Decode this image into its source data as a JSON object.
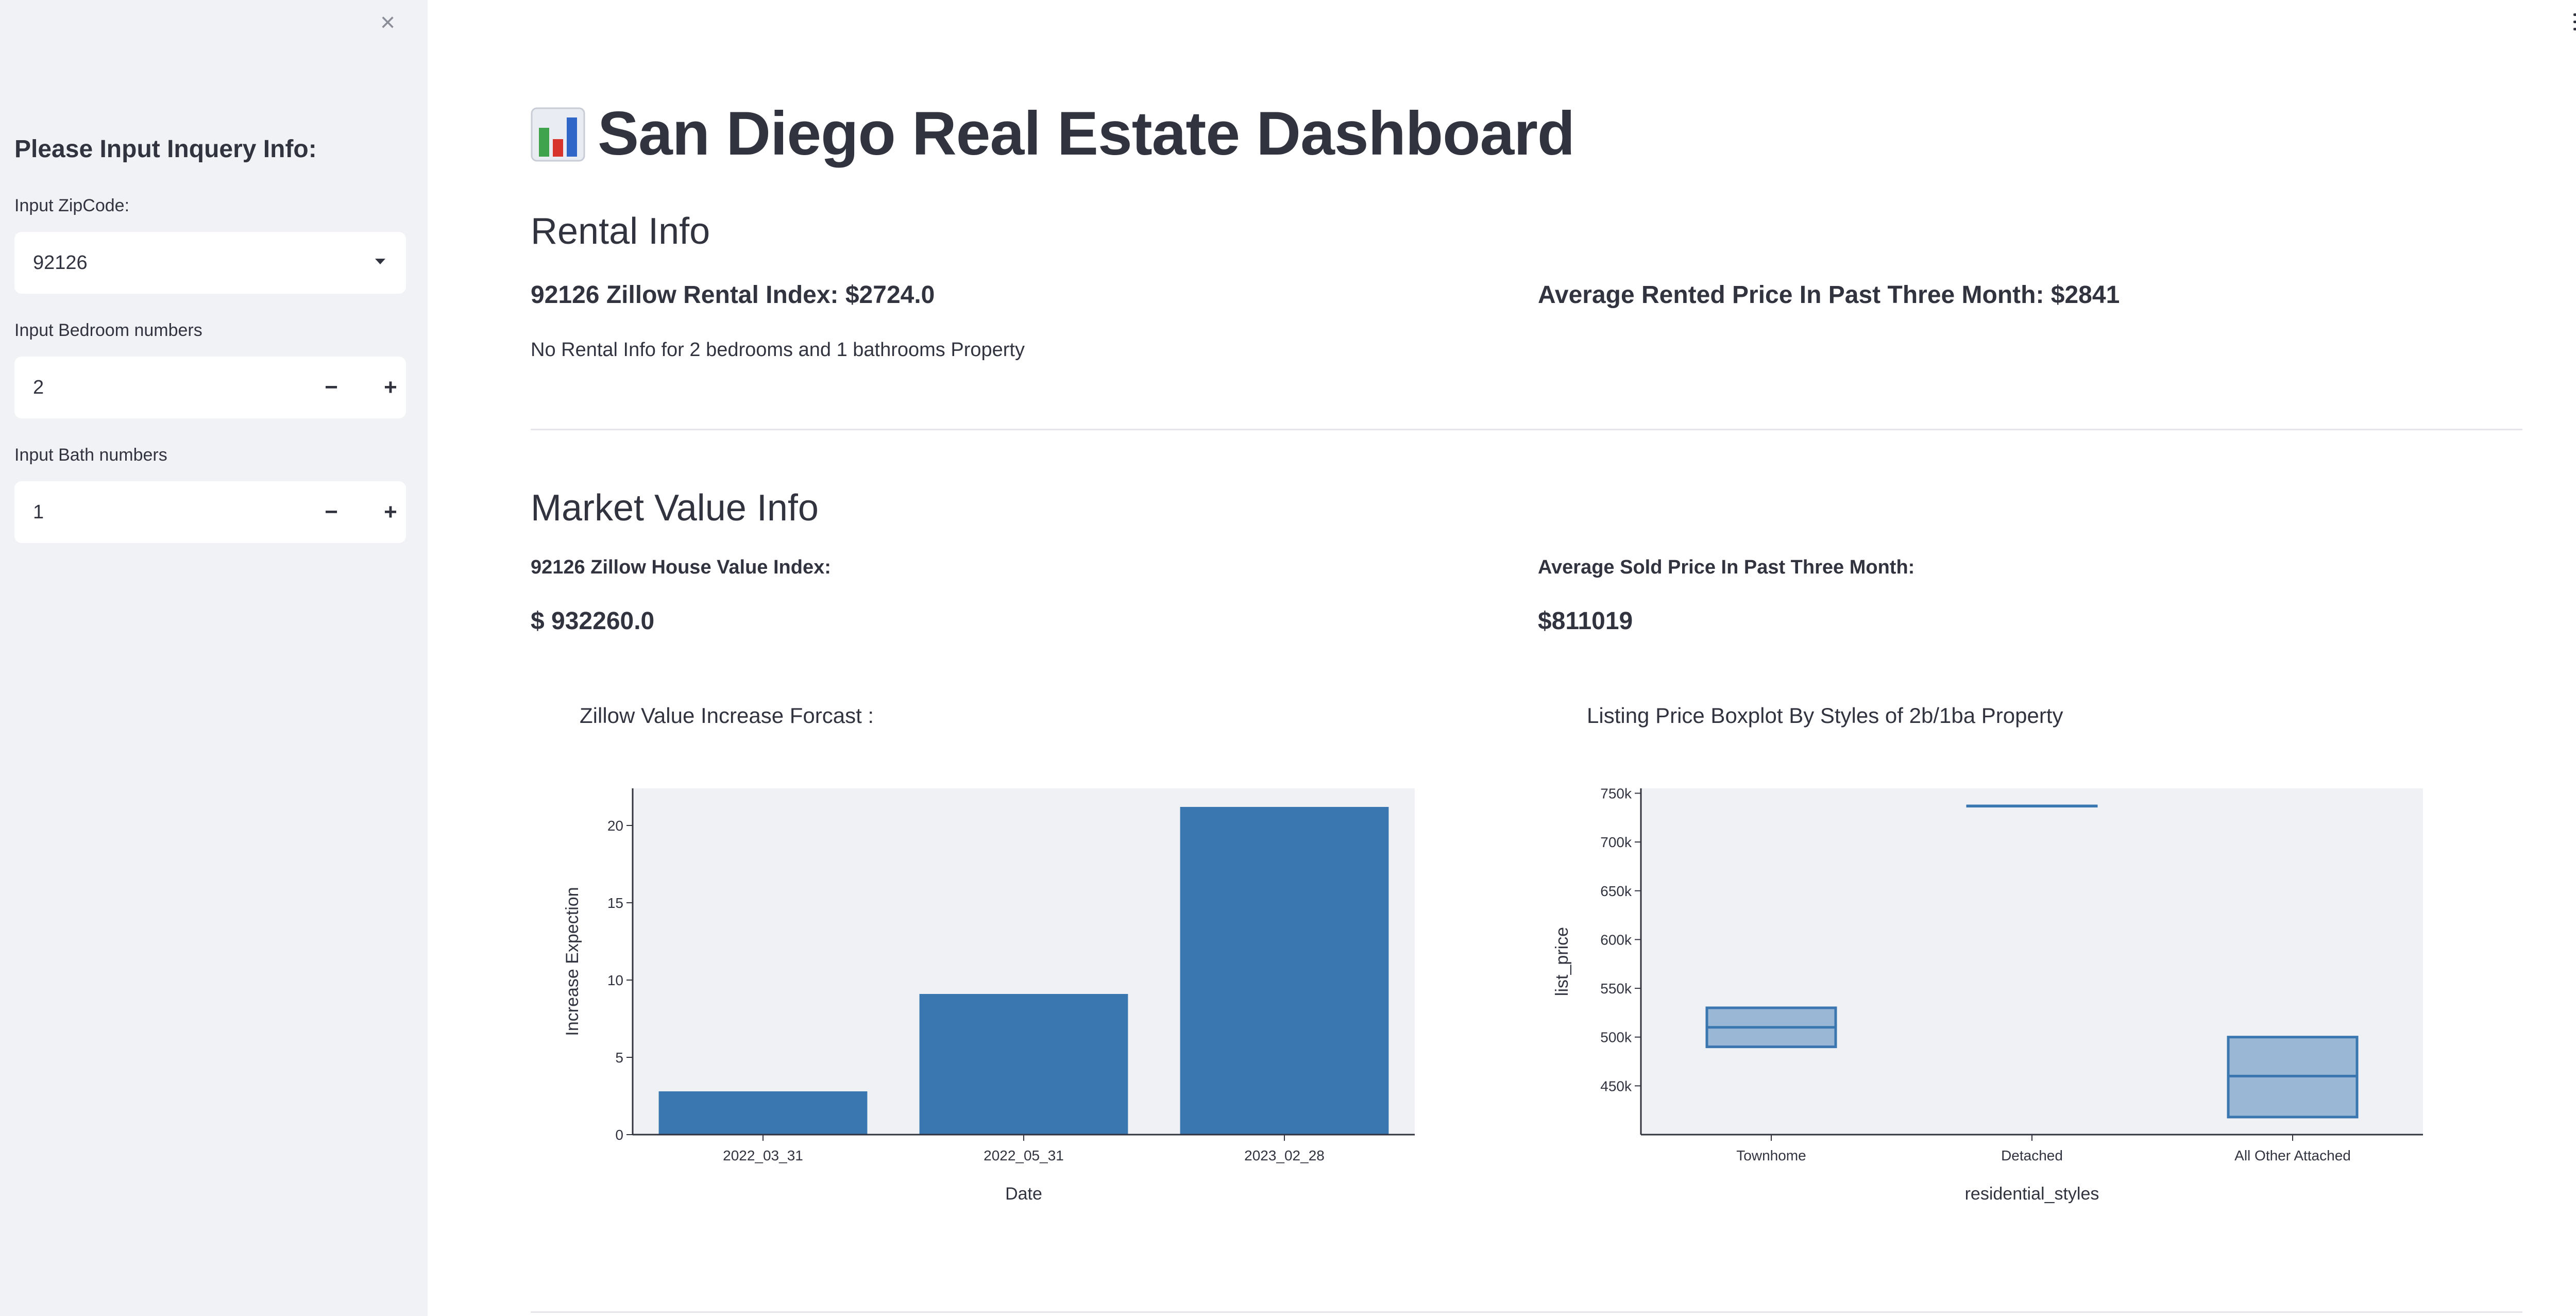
{
  "sidebar": {
    "heading": "Please Input Inquery Info:",
    "zipcode_label": "Input ZipCode:",
    "zipcode_value": "92126",
    "bedroom_label": "Input Bedroom numbers",
    "bedroom_value": "2",
    "bath_label": "Input Bath numbers",
    "bath_value": "1",
    "minus": "−",
    "plus": "+",
    "close": "×"
  },
  "header": {
    "title": "San Diego Real Estate Dashboard"
  },
  "rental": {
    "section_title": "Rental Info",
    "index_label": "92126 Zillow Rental Index: $2724.0",
    "avg_label": "Average Rented Price In Past Three Month: $2841",
    "note": "No Rental Info for 2 bedrooms and 1 bathrooms Property"
  },
  "market": {
    "section_title": "Market Value Info",
    "index_label": "92126 Zillow House Value Index:",
    "index_value": "$ 932260.0",
    "avg_label": "Average Sold Price In Past Three Month:",
    "avg_value": "$811019"
  },
  "chart_data": [
    {
      "type": "bar",
      "title": "Zillow Value Increase Forcast :",
      "xlabel": "Date",
      "ylabel": "Increase Expection",
      "categories": [
        "2022_03_31",
        "2022_05_31",
        "2023_02_28"
      ],
      "values": [
        2.8,
        9.1,
        21.2
      ],
      "ylim": [
        0,
        22.4
      ],
      "yticks": [
        0,
        5,
        10,
        15,
        20
      ],
      "color": "#3a76af",
      "grid": false
    },
    {
      "type": "box",
      "title": "Listing Price Boxplot By Styles of 2b/1ba Property",
      "xlabel": "residential_styles",
      "ylabel": "list_price",
      "categories": [
        "Townhome",
        "Detached",
        "All Other Attached"
      ],
      "boxes": [
        {
          "q1": 490000,
          "median": 510000,
          "q3": 530000
        },
        {
          "q1": 737000,
          "median": 737000,
          "q3": 737000
        },
        {
          "q1": 418000,
          "median": 460000,
          "q3": 500000
        }
      ],
      "ylim": [
        400000,
        755000
      ],
      "yticks": [
        450000,
        500000,
        550000,
        600000,
        650000,
        700000,
        750000
      ],
      "ytick_labels": [
        "450k",
        "500k",
        "550k",
        "600k",
        "650k",
        "700k",
        "750k"
      ],
      "color": "#3a76af",
      "grid": false
    }
  ],
  "colors": {
    "sidebar_bg": "#f0f2f6",
    "text": "#31333f",
    "bar": "#3a76af",
    "plot_bg": "#eff1f5"
  }
}
